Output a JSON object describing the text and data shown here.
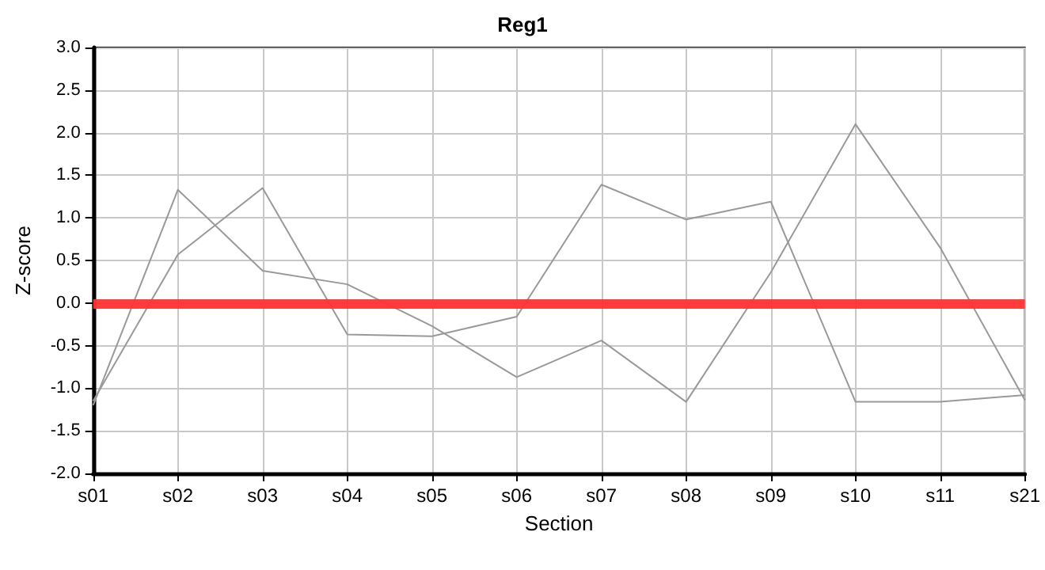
{
  "chart_data": {
    "type": "line",
    "title": "Reg1",
    "xlabel": "Section",
    "ylabel": "Z-score",
    "categories": [
      "s01",
      "s02",
      "s03",
      "s04",
      "s05",
      "s06",
      "s07",
      "s08",
      "s09",
      "s10",
      "s11",
      "s21"
    ],
    "series": [
      {
        "color": "#999999",
        "values": [
          -1.2,
          1.33,
          0.38,
          0.22,
          -0.27,
          -0.87,
          -0.44,
          -1.16,
          0.36,
          2.1,
          0.65,
          -1.14
        ]
      },
      {
        "color": "#999999",
        "values": [
          -1.15,
          0.57,
          1.35,
          -0.37,
          -0.39,
          -0.16,
          1.39,
          0.98,
          1.19,
          -1.16,
          -1.16,
          -1.08
        ]
      }
    ],
    "ylim": [
      -2,
      3
    ],
    "yticks": [
      {
        "value": -2,
        "label": "-2.0"
      },
      {
        "value": -1.5,
        "label": "-1.5"
      },
      {
        "value": -1,
        "label": "-1.0"
      },
      {
        "value": -0.5,
        "label": "-0.5"
      },
      {
        "value": 0,
        "label": "0.0"
      },
      {
        "value": 0.5,
        "label": "0.5"
      },
      {
        "value": 1,
        "label": "1.0"
      },
      {
        "value": 1.5,
        "label": "1.5"
      },
      {
        "value": 2,
        "label": "2.0"
      },
      {
        "value": 2.5,
        "label": "2.5"
      },
      {
        "value": 3,
        "label": "3.0"
      }
    ],
    "ref_lines": [
      {
        "axis": "y",
        "value": 0,
        "color": "#ff3333"
      }
    ],
    "grid": true,
    "marker": "none",
    "line_style": "solid"
  }
}
